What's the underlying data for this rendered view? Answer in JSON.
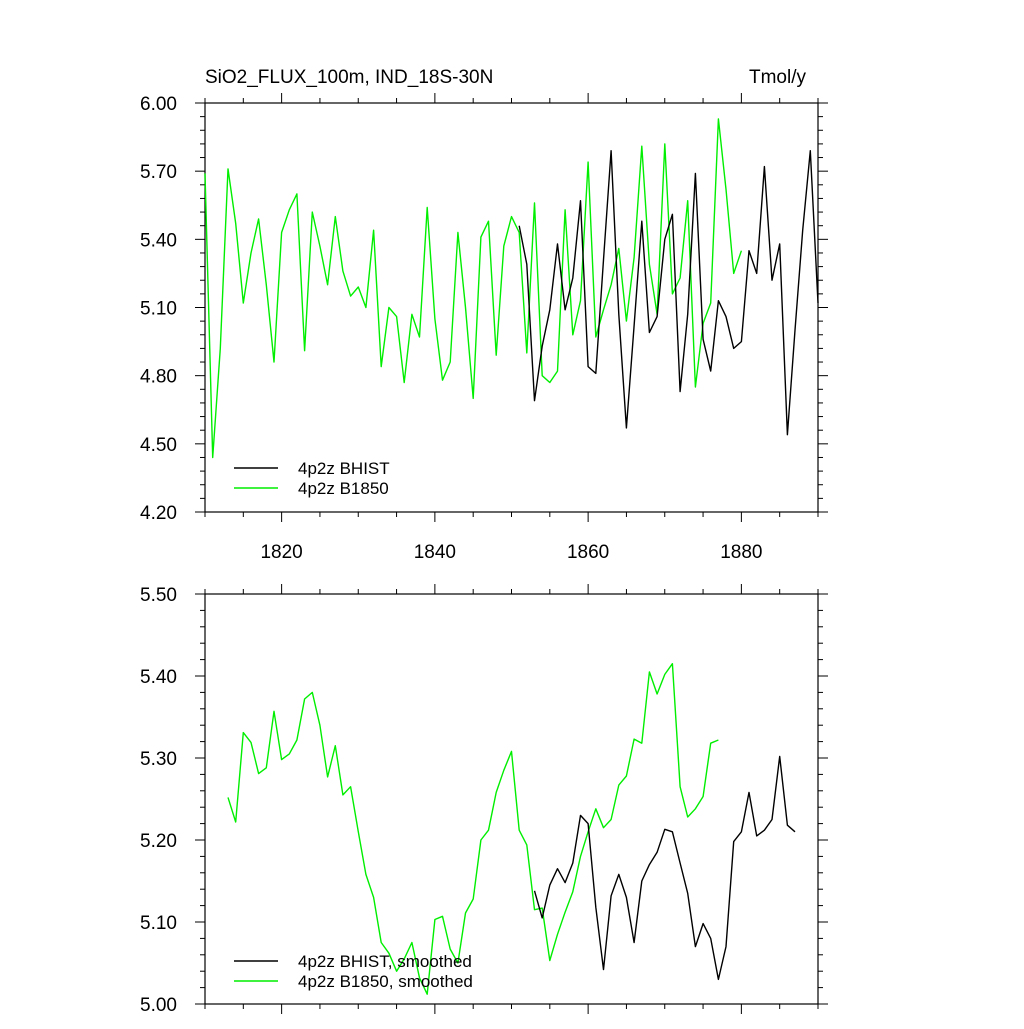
{
  "colors": {
    "bhist": "#000000",
    "b1850": "#00ee00",
    "frame": "#000000"
  },
  "chart_data": [
    {
      "type": "line",
      "title": "SiO2_FLUX_100m, IND_18S-30N",
      "units": "Tmol/y",
      "xlim": [
        1810,
        1890
      ],
      "ylim": [
        4.2,
        6.0
      ],
      "xticks": [
        1820,
        1840,
        1860,
        1880
      ],
      "xtick_labels": [
        "1820",
        "1840",
        "1860",
        "1880"
      ],
      "yticks": [
        4.2,
        4.5,
        4.8,
        5.1,
        5.4,
        5.7,
        6.0
      ],
      "ytick_labels": [
        "4.20",
        "4.50",
        "4.80",
        "5.10",
        "5.40",
        "5.70",
        "6.00"
      ],
      "legend_position": "bottom-left",
      "series": [
        {
          "name": "4p2z BHIST",
          "color": "#000000",
          "x": [
            1851,
            1852,
            1853,
            1854,
            1855,
            1856,
            1857,
            1858,
            1859,
            1860,
            1861,
            1862,
            1863,
            1864,
            1865,
            1866,
            1867,
            1868,
            1869,
            1870,
            1871,
            1872,
            1873,
            1874,
            1875,
            1876,
            1877,
            1878,
            1879,
            1880,
            1881,
            1882,
            1883,
            1884,
            1885,
            1886,
            1887,
            1888,
            1889,
            1890
          ],
          "y": [
            5.46,
            5.29,
            4.69,
            4.93,
            5.09,
            5.38,
            5.09,
            5.23,
            5.57,
            4.84,
            4.81,
            5.31,
            5.79,
            5.07,
            4.57,
            5.02,
            5.48,
            4.99,
            5.06,
            5.4,
            5.51,
            4.73,
            5.07,
            5.69,
            4.96,
            4.82,
            5.13,
            5.06,
            4.92,
            4.95,
            5.35,
            5.25,
            5.72,
            5.22,
            5.38,
            4.54,
            5.0,
            5.44,
            5.79,
            5.12
          ]
        },
        {
          "name": "4p2z B1850",
          "color": "#00ee00",
          "x": [
            1810,
            1811,
            1812,
            1813,
            1814,
            1815,
            1816,
            1817,
            1818,
            1819,
            1820,
            1821,
            1822,
            1823,
            1824,
            1825,
            1826,
            1827,
            1828,
            1829,
            1830,
            1831,
            1832,
            1833,
            1834,
            1835,
            1836,
            1837,
            1838,
            1839,
            1840,
            1841,
            1842,
            1843,
            1844,
            1845,
            1846,
            1847,
            1848,
            1849,
            1850,
            1851,
            1852,
            1853,
            1854,
            1855,
            1856,
            1857,
            1858,
            1859,
            1860,
            1861,
            1862,
            1863,
            1864,
            1865,
            1866,
            1867,
            1868,
            1869,
            1870,
            1871,
            1872,
            1873,
            1874,
            1875,
            1876,
            1877,
            1878,
            1879,
            1880
          ],
          "y": [
            5.69,
            4.44,
            4.92,
            5.71,
            5.47,
            5.12,
            5.34,
            5.49,
            5.2,
            4.86,
            5.43,
            5.53,
            5.6,
            4.91,
            5.52,
            5.37,
            5.2,
            5.5,
            5.26,
            5.15,
            5.19,
            5.1,
            5.44,
            4.84,
            5.1,
            5.06,
            4.77,
            5.07,
            4.97,
            5.54,
            5.05,
            4.78,
            4.86,
            5.43,
            5.1,
            4.7,
            5.41,
            5.48,
            4.89,
            5.37,
            5.5,
            5.43,
            4.9,
            5.56,
            4.8,
            4.77,
            4.82,
            5.53,
            4.98,
            5.13,
            5.74,
            4.97,
            5.09,
            5.2,
            5.36,
            5.04,
            5.32,
            5.81,
            5.29,
            5.07,
            5.82,
            5.16,
            5.23,
            5.57,
            4.75,
            5.03,
            5.12,
            5.93,
            5.62,
            5.25,
            5.35
          ]
        }
      ]
    },
    {
      "type": "line",
      "title": "",
      "units": "",
      "xlim": [
        1810,
        1890
      ],
      "ylim": [
        5.0,
        5.5
      ],
      "xticks": [
        1820,
        1840,
        1860,
        1880
      ],
      "xtick_labels": [],
      "yticks": [
        5.0,
        5.1,
        5.2,
        5.3,
        5.4,
        5.5
      ],
      "ytick_labels": [
        "5.00",
        "5.10",
        "5.20",
        "5.30",
        "5.40",
        "5.50"
      ],
      "legend_position": "bottom-left",
      "series": [
        {
          "name": "4p2z BHIST, smoothed",
          "color": "#000000",
          "x": [
            1853,
            1854,
            1855,
            1856,
            1857,
            1858,
            1859,
            1860,
            1861,
            1862,
            1863,
            1864,
            1865,
            1866,
            1867,
            1868,
            1869,
            1870,
            1871,
            1872,
            1873,
            1874,
            1875,
            1876,
            1877,
            1878,
            1879,
            1880,
            1881,
            1882,
            1883,
            1884,
            1885,
            1886,
            1887
          ],
          "y": [
            5.138,
            5.105,
            5.145,
            5.165,
            5.148,
            5.172,
            5.23,
            5.22,
            5.118,
            5.042,
            5.132,
            5.158,
            5.13,
            5.075,
            5.15,
            5.17,
            5.185,
            5.213,
            5.21,
            5.172,
            5.135,
            5.07,
            5.098,
            5.08,
            5.03,
            5.07,
            5.198,
            5.21,
            5.258,
            5.205,
            5.212,
            5.225,
            5.302,
            5.218,
            5.21
          ]
        },
        {
          "name": "4p2z B1850, smoothed",
          "color": "#00ee00",
          "x": [
            1813,
            1814,
            1815,
            1816,
            1817,
            1818,
            1819,
            1820,
            1821,
            1822,
            1823,
            1824,
            1825,
            1826,
            1827,
            1828,
            1829,
            1830,
            1831,
            1832,
            1833,
            1834,
            1835,
            1836,
            1837,
            1838,
            1839,
            1840,
            1841,
            1842,
            1843,
            1844,
            1845,
            1846,
            1847,
            1848,
            1849,
            1850,
            1851,
            1852,
            1853,
            1854,
            1855,
            1856,
            1857,
            1858,
            1859,
            1860,
            1861,
            1862,
            1863,
            1864,
            1865,
            1866,
            1867,
            1868,
            1869,
            1870,
            1871,
            1872,
            1873,
            1874,
            1875,
            1876,
            1877
          ],
          "y": [
            5.252,
            5.222,
            5.331,
            5.319,
            5.281,
            5.288,
            5.357,
            5.298,
            5.305,
            5.322,
            5.372,
            5.38,
            5.34,
            5.277,
            5.315,
            5.255,
            5.265,
            5.21,
            5.158,
            5.13,
            5.075,
            5.062,
            5.04,
            5.055,
            5.075,
            5.032,
            5.012,
            5.103,
            5.107,
            5.067,
            5.05,
            5.111,
            5.128,
            5.2,
            5.212,
            5.258,
            5.285,
            5.308,
            5.212,
            5.194,
            5.115,
            5.117,
            5.053,
            5.085,
            5.112,
            5.137,
            5.18,
            5.21,
            5.238,
            5.215,
            5.225,
            5.267,
            5.278,
            5.323,
            5.318,
            5.405,
            5.378,
            5.402,
            5.415,
            5.265,
            5.228,
            5.238,
            5.253,
            5.318,
            5.322
          ]
        }
      ]
    }
  ]
}
